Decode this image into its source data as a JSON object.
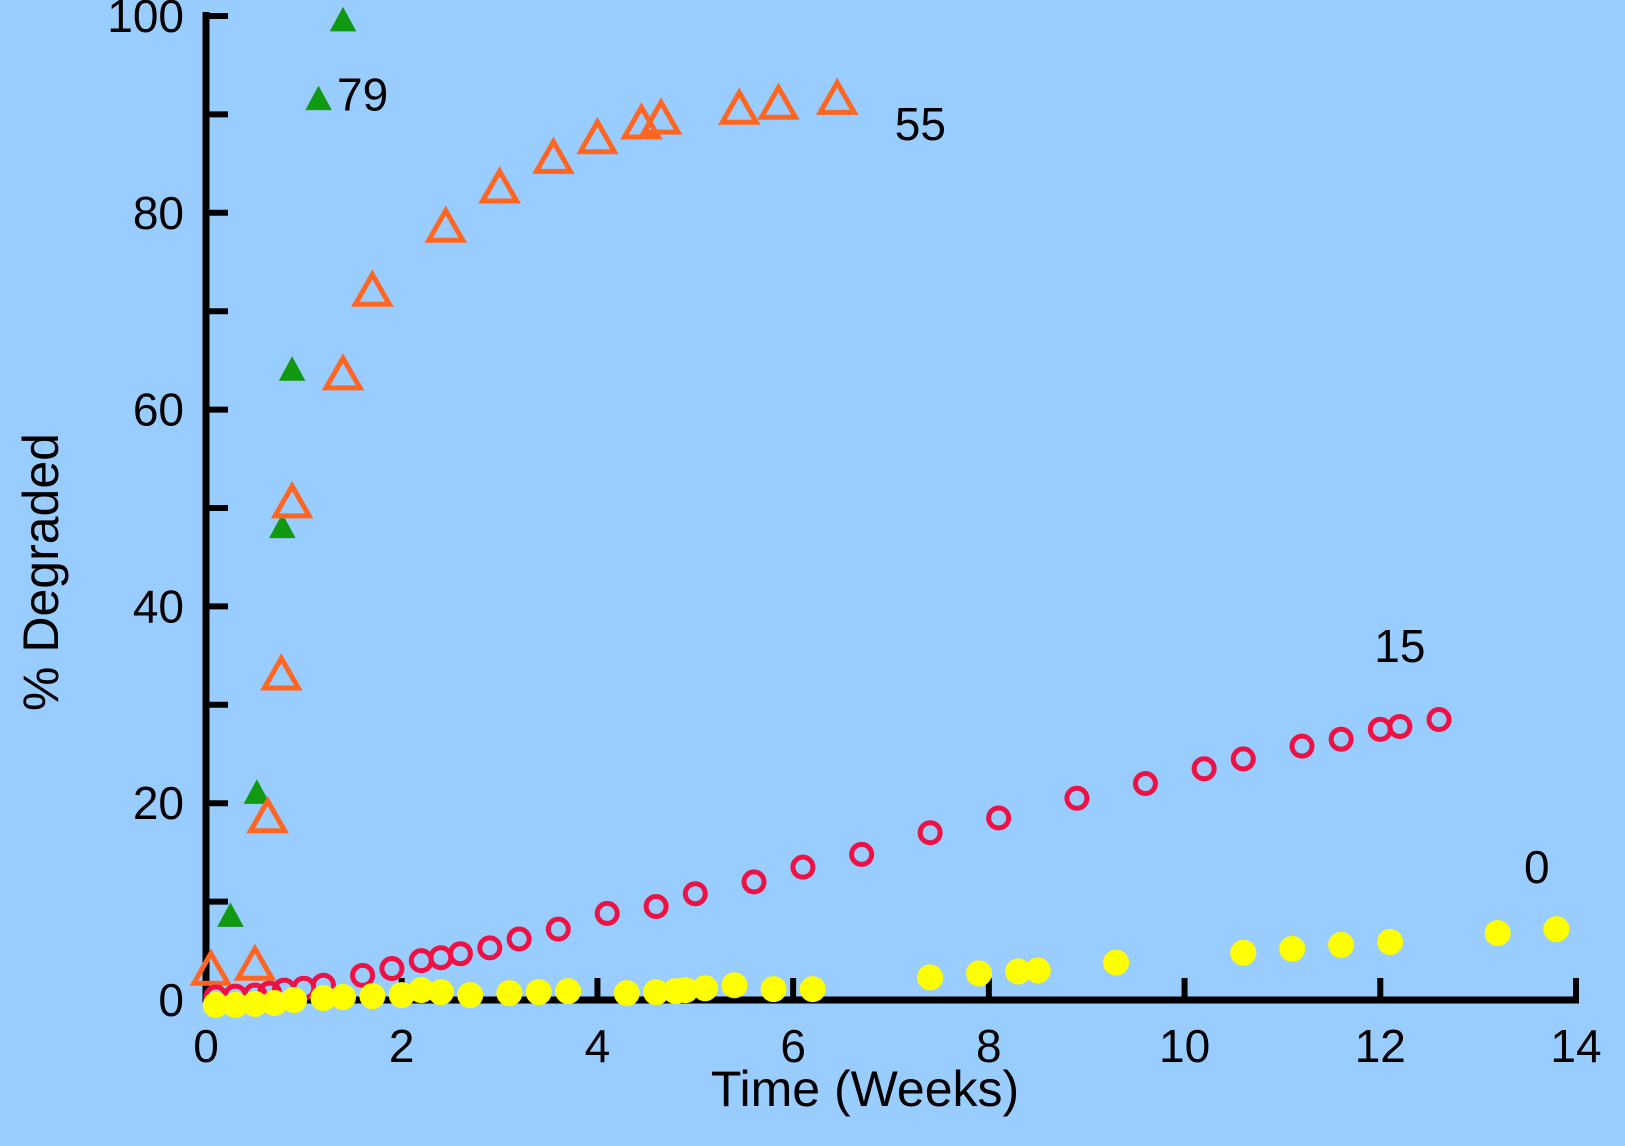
{
  "chart_data": {
    "type": "scatter",
    "xlabel": "Time (Weeks)",
    "ylabel": "% Degraded",
    "xlim": [
      0,
      14
    ],
    "ylim": [
      0,
      100
    ],
    "xticks": [
      0,
      2,
      4,
      6,
      8,
      10,
      12,
      14
    ],
    "yticks": [
      0,
      20,
      40,
      60,
      80,
      100
    ],
    "grid": false,
    "legend": "none",
    "background_color": "#99ccff",
    "series": [
      {
        "label": "79",
        "label_position": [
          1.6,
          92
        ],
        "marker": "filled-triangle",
        "color": "#119911",
        "points": [
          [
            0.25,
            8.5
          ],
          [
            0.52,
            21
          ],
          [
            0.78,
            48
          ],
          [
            0.88,
            64
          ],
          [
            1.15,
            91.5
          ],
          [
            1.4,
            99.5
          ]
        ]
      },
      {
        "label": "55",
        "label_position": [
          7.3,
          89
        ],
        "marker": "open-triangle",
        "color": "#ff6622",
        "points": [
          [
            0.05,
            3
          ],
          [
            0.5,
            3.5
          ],
          [
            0.63,
            18.5
          ],
          [
            0.77,
            33
          ],
          [
            0.88,
            50.5
          ],
          [
            1.4,
            63.5
          ],
          [
            1.7,
            72
          ],
          [
            2.45,
            78.5
          ],
          [
            3.0,
            82.5
          ],
          [
            3.55,
            85.5
          ],
          [
            4.0,
            87.5
          ],
          [
            4.45,
            89
          ],
          [
            4.65,
            89.5
          ],
          [
            5.45,
            90.5
          ],
          [
            5.85,
            91
          ],
          [
            6.45,
            91.5
          ]
        ]
      },
      {
        "label": "15",
        "label_position": [
          12.2,
          36
        ],
        "marker": "open-circle",
        "color": "#ee1144",
        "points": [
          [
            0.1,
            0.3
          ],
          [
            0.3,
            0.4
          ],
          [
            0.5,
            0.5
          ],
          [
            0.65,
            0.7
          ],
          [
            0.8,
            1
          ],
          [
            1.0,
            1.2
          ],
          [
            1.2,
            1.5
          ],
          [
            1.6,
            2.5
          ],
          [
            1.9,
            3.2
          ],
          [
            2.2,
            4
          ],
          [
            2.4,
            4.3
          ],
          [
            2.6,
            4.7
          ],
          [
            2.9,
            5.3
          ],
          [
            3.2,
            6.2
          ],
          [
            3.6,
            7.2
          ],
          [
            4.1,
            8.8
          ],
          [
            4.6,
            9.5
          ],
          [
            5.0,
            10.8
          ],
          [
            5.6,
            12
          ],
          [
            6.1,
            13.5
          ],
          [
            6.7,
            14.8
          ],
          [
            7.4,
            17
          ],
          [
            8.1,
            18.5
          ],
          [
            8.9,
            20.5
          ],
          [
            9.6,
            22
          ],
          [
            10.2,
            23.5
          ],
          [
            10.6,
            24.5
          ],
          [
            11.2,
            25.8
          ],
          [
            11.6,
            26.5
          ],
          [
            12.0,
            27.5
          ],
          [
            12.2,
            27.8
          ],
          [
            12.6,
            28.5
          ]
        ]
      },
      {
        "label": "0",
        "label_position": [
          13.6,
          13.5
        ],
        "marker": "filled-circle",
        "color": "#ffff00",
        "points": [
          [
            0.1,
            -0.5
          ],
          [
            0.3,
            -0.5
          ],
          [
            0.5,
            -0.4
          ],
          [
            0.7,
            -0.3
          ],
          [
            0.9,
            0
          ],
          [
            1.2,
            0.2
          ],
          [
            1.4,
            0.3
          ],
          [
            1.7,
            0.4
          ],
          [
            2.0,
            0.5
          ],
          [
            2.2,
            1
          ],
          [
            2.4,
            0.8
          ],
          [
            2.7,
            0.5
          ],
          [
            3.1,
            0.7
          ],
          [
            3.4,
            0.8
          ],
          [
            3.7,
            0.9
          ],
          [
            4.3,
            0.7
          ],
          [
            4.6,
            0.8
          ],
          [
            4.8,
            0.9
          ],
          [
            4.9,
            1
          ],
          [
            5.1,
            1.2
          ],
          [
            5.4,
            1.5
          ],
          [
            5.8,
            1.1
          ],
          [
            6.2,
            1.1
          ],
          [
            7.4,
            2.3
          ],
          [
            7.9,
            2.7
          ],
          [
            8.3,
            2.9
          ],
          [
            8.5,
            3
          ],
          [
            9.3,
            3.8
          ],
          [
            10.6,
            4.8
          ],
          [
            11.1,
            5.2
          ],
          [
            11.6,
            5.6
          ],
          [
            12.1,
            5.9
          ],
          [
            13.2,
            6.8
          ],
          [
            13.8,
            7.2
          ]
        ]
      }
    ]
  }
}
